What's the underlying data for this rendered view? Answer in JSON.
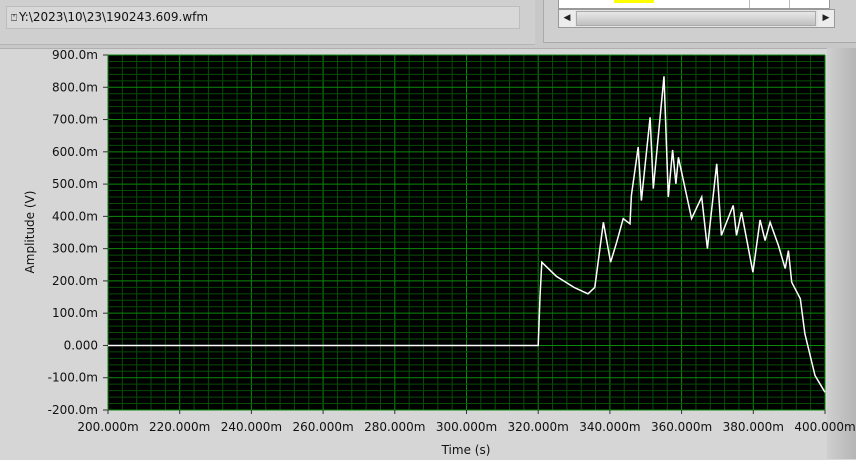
{
  "file_path": {
    "icon": "path-icon",
    "value": "Y:\\2023\\10\\23\\190243.609.wfm"
  },
  "table_scrollbar": {
    "left_arrow": "◀",
    "right_arrow": "▶"
  },
  "colors": {
    "plot_bg": "#000000",
    "grid_major": "#0a8a0a",
    "grid_minor": "#064d06",
    "trace": "#ffffff",
    "highlight_cell": "#ffff00"
  },
  "chart_data": {
    "type": "line",
    "title": "",
    "xlabel": "Time (s)",
    "ylabel": "Amplitude (V)",
    "xlim": [
      0.2,
      0.4
    ],
    "ylim": [
      -0.2,
      0.9
    ],
    "grid": true,
    "x_ticks": [
      "200.000m",
      "220.000m",
      "240.000m",
      "260.000m",
      "280.000m",
      "300.000m",
      "320.000m",
      "340.000m",
      "360.000m",
      "380.000m",
      "400.000m"
    ],
    "y_ticks": [
      "900.0m",
      "800.0m",
      "700.0m",
      "600.0m",
      "500.0m",
      "400.0m",
      "300.0m",
      "200.0m",
      "100.0m",
      "0.000",
      "-100.0m",
      "-200.0m"
    ],
    "series": [
      {
        "x": [
          0.2,
          0.22,
          0.24,
          0.26,
          0.28,
          0.3,
          0.32,
          0.3205,
          0.321,
          0.325,
          0.33,
          0.3339,
          0.3358,
          0.3382,
          0.3402,
          0.3419,
          0.3437,
          0.3456,
          0.346,
          0.3479,
          0.3488,
          0.3512,
          0.3521,
          0.3551,
          0.3563,
          0.3575,
          0.3584,
          0.3591,
          0.3628,
          0.3656,
          0.3672,
          0.3698,
          0.3711,
          0.3744,
          0.3753,
          0.3767,
          0.3799,
          0.3819,
          0.3833,
          0.3847,
          0.387,
          0.3889,
          0.3898,
          0.3907,
          0.3931,
          0.3944,
          0.3972,
          0.4
        ],
        "y": [
          0.0,
          0.0,
          0.0,
          0.0,
          0.0,
          0.0,
          0.0,
          0.15,
          0.258,
          0.215,
          0.18,
          0.16,
          0.18,
          0.382,
          0.258,
          0.32,
          0.393,
          0.377,
          0.465,
          0.615,
          0.449,
          0.707,
          0.486,
          0.834,
          0.46,
          0.606,
          0.501,
          0.583,
          0.393,
          0.46,
          0.3,
          0.563,
          0.341,
          0.434,
          0.341,
          0.413,
          0.227,
          0.389,
          0.325,
          0.382,
          0.31,
          0.238,
          0.294,
          0.196,
          0.145,
          0.036,
          -0.093,
          -0.145
        ]
      }
    ]
  }
}
